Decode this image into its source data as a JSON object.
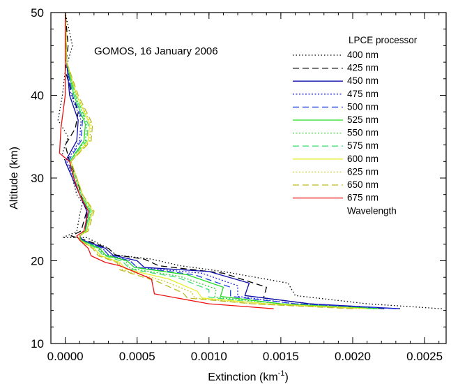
{
  "chart_data": {
    "type": "line",
    "annotation": "GOMOS, 16 January 2006",
    "xlabel": "Extinction (km",
    "xlabel_sup": "-1",
    "xlabel_close": ")",
    "ylabel": "Altitude (km)",
    "xlim": [
      -0.0001,
      0.00265
    ],
    "ylim": [
      10,
      50
    ],
    "xticks": [
      0.0,
      0.0005,
      0.001,
      0.0015,
      0.002,
      0.0025
    ],
    "xtick_labels": [
      "0.0000",
      "0.0005",
      "0.0010",
      "0.0015",
      "0.0020",
      "0.0025"
    ],
    "yticks": [
      10,
      20,
      30,
      40,
      50
    ],
    "ytick_labels": [
      "10",
      "20",
      "30",
      "40",
      "50"
    ],
    "legend": {
      "title": "LPCE processor",
      "footer": "Wavelength",
      "position": "top-right"
    },
    "series": [
      {
        "name": "400 nm",
        "color": "#000000",
        "dash": "1.5,3",
        "x": [
          0.00262,
          0.0021,
          0.0016,
          0.00155,
          0.0011,
          0.0008,
          0.0006,
          0.00035,
          0.0003,
          0.00015,
          -2e-05,
          8e-05,
          0.0001,
          0.00012,
          8e-05,
          5e-05,
          0.0,
          -2e-05,
          2e-05,
          -5e-05,
          -2e-05,
          0.0,
          5e-05,
          0.0
        ],
        "y": [
          14.2,
          14.8,
          15.8,
          17.3,
          18.7,
          19.4,
          20.2,
          20.7,
          21.5,
          22.8,
          22.8,
          23.5,
          25.5,
          27.0,
          28.0,
          30.0,
          32.0,
          33.0,
          35.0,
          37.0,
          40.0,
          43.0,
          46.0,
          50.0
        ]
      },
      {
        "name": "425 nm",
        "color": "#000000",
        "dash": "9,5",
        "x": [
          0.00222,
          0.0017,
          0.00138,
          0.0014,
          0.0011,
          0.00065,
          0.00055,
          0.00035,
          0.0003,
          0.00014,
          4e-05,
          0.00011,
          0.00015,
          0.00011,
          8e-05,
          3e-05,
          0.0,
          7e-05,
          9e-05,
          5e-05,
          0.0,
          2e-05,
          0.0
        ],
        "y": [
          14.2,
          14.8,
          15.5,
          16.8,
          18.5,
          19.4,
          20.2,
          20.7,
          21.5,
          22.5,
          23.0,
          23.6,
          26.0,
          28.0,
          30.0,
          32.0,
          34.0,
          36.0,
          38.0,
          40.0,
          43.0,
          46.0,
          50.0
        ]
      },
      {
        "name": "450 nm",
        "color": "#0a0aa8",
        "dash": "",
        "x": [
          0.00233,
          0.0017,
          0.00125,
          0.00128,
          0.001,
          0.00055,
          0.0005,
          0.00033,
          0.00028,
          0.00012,
          0.0001,
          0.00014,
          0.00015,
          0.0001,
          5e-05,
          0.0,
          8e-05,
          9e-05,
          3e-05,
          1e-05,
          0.0
        ],
        "y": [
          14.2,
          14.8,
          15.8,
          17.3,
          18.7,
          19.2,
          20.0,
          20.7,
          21.5,
          22.5,
          23.0,
          23.6,
          26.0,
          28.0,
          30.0,
          32.0,
          34.5,
          37.0,
          40.0,
          44.0,
          50.0
        ]
      },
      {
        "name": "475 nm",
        "color": "#2222dd",
        "dash": "2,2.5",
        "x": [
          0.0023,
          0.0016,
          0.0012,
          0.0012,
          0.00095,
          0.0005,
          0.00045,
          0.0003,
          0.00026,
          0.00012,
          0.0001,
          0.00014,
          0.00016,
          0.0001,
          6e-05,
          1e-05,
          0.0001,
          0.00011,
          4e-05,
          1e-05,
          0.0
        ],
        "y": [
          14.2,
          14.8,
          15.7,
          17.0,
          18.5,
          19.2,
          20.0,
          20.7,
          21.5,
          22.5,
          23.0,
          23.6,
          26.0,
          28.0,
          30.0,
          32.0,
          34.5,
          37.0,
          40.0,
          44.0,
          50.0
        ]
      },
      {
        "name": "500 nm",
        "color": "#1f3fe0",
        "dash": "9,5",
        "x": [
          0.0023,
          0.0016,
          0.00115,
          0.00115,
          0.0009,
          0.0005,
          0.00045,
          0.0003,
          0.00026,
          0.00012,
          0.0001,
          0.00014,
          0.00016,
          0.0001,
          6e-05,
          2e-05,
          0.00011,
          0.00012,
          5e-05,
          1e-05,
          0.0
        ],
        "y": [
          14.2,
          14.8,
          15.7,
          16.8,
          18.3,
          19.2,
          20.0,
          20.7,
          21.5,
          22.5,
          23.0,
          23.6,
          26.0,
          28.0,
          30.0,
          32.0,
          34.5,
          37.0,
          40.0,
          44.0,
          50.0
        ]
      },
      {
        "name": "525 nm",
        "color": "#22dd22",
        "dash": "",
        "x": [
          0.00218,
          0.0015,
          0.00108,
          0.0011,
          0.00085,
          0.00048,
          0.00043,
          0.00028,
          0.00024,
          0.00011,
          0.0001,
          0.00014,
          0.00017,
          0.0001,
          6e-05,
          3e-05,
          0.00013,
          0.00014,
          6e-05,
          1e-05,
          0.0
        ],
        "y": [
          14.2,
          14.8,
          15.7,
          16.8,
          18.3,
          19.2,
          20.0,
          20.7,
          21.5,
          22.5,
          23.0,
          23.6,
          26.0,
          28.0,
          30.0,
          32.0,
          34.5,
          36.5,
          40.0,
          44.0,
          50.0
        ]
      },
      {
        "name": "550 nm",
        "color": "#33cc33",
        "dash": "2,2.5",
        "x": [
          0.00215,
          0.0015,
          0.00104,
          0.00105,
          0.0008,
          0.00045,
          0.00042,
          0.00027,
          0.00023,
          0.00011,
          0.0001,
          0.00015,
          0.00018,
          0.00011,
          7e-05,
          3e-05,
          0.00014,
          0.00015,
          7e-05,
          1e-05,
          0.0
        ],
        "y": [
          14.2,
          14.8,
          15.6,
          16.6,
          18.1,
          19.1,
          20.0,
          20.7,
          21.5,
          22.5,
          23.0,
          23.6,
          26.0,
          28.0,
          30.0,
          32.0,
          34.5,
          36.5,
          40.0,
          44.0,
          50.0
        ]
      },
      {
        "name": "575 nm",
        "color": "#44dd77",
        "dash": "9,5",
        "x": [
          0.00212,
          0.0014,
          0.001,
          0.001,
          0.00078,
          0.00045,
          0.0004,
          0.00026,
          0.00022,
          0.0001,
          0.0001,
          0.00015,
          0.00018,
          0.00011,
          7e-05,
          3e-05,
          0.00015,
          0.00016,
          7e-05,
          1e-05,
          0.0
        ],
        "y": [
          14.2,
          14.8,
          15.6,
          16.5,
          18.0,
          19.0,
          19.9,
          20.7,
          21.5,
          22.5,
          23.0,
          23.6,
          26.0,
          28.0,
          30.0,
          32.0,
          34.5,
          36.5,
          40.0,
          44.0,
          50.0
        ]
      },
      {
        "name": "600 nm",
        "color": "#e6ee30",
        "dash": "",
        "x": [
          0.0021,
          0.0014,
          0.00095,
          0.00092,
          0.00072,
          0.00042,
          0.00038,
          0.00025,
          0.0002,
          0.0001,
          0.0001,
          0.00015,
          0.00019,
          0.00012,
          8e-05,
          4e-05,
          0.00016,
          0.00017,
          8e-05,
          1e-05,
          0.0
        ],
        "y": [
          14.2,
          14.8,
          15.5,
          16.3,
          17.8,
          19.0,
          19.8,
          20.6,
          21.5,
          22.5,
          23.0,
          23.6,
          26.0,
          28.0,
          30.0,
          32.0,
          34.5,
          36.5,
          40.0,
          44.0,
          50.0
        ]
      },
      {
        "name": "625 nm",
        "color": "#cccc22",
        "dash": "2,2.5",
        "x": [
          0.00205,
          0.0013,
          0.0009,
          0.00088,
          0.00068,
          0.0004,
          0.00037,
          0.00024,
          0.0002,
          0.0001,
          0.0001,
          0.00015,
          0.00019,
          0.00012,
          8e-05,
          4e-05,
          0.00017,
          0.00018,
          8e-05,
          1e-05,
          0.0
        ],
        "y": [
          14.2,
          14.8,
          15.5,
          16.2,
          17.6,
          18.9,
          19.8,
          20.6,
          21.5,
          22.5,
          23.0,
          23.6,
          26.0,
          28.0,
          30.0,
          32.0,
          34.5,
          36.5,
          40.0,
          44.0,
          50.0
        ]
      },
      {
        "name": "650 nm",
        "color": "#bbbb22",
        "dash": "9,5",
        "x": [
          0.002,
          0.0013,
          0.00085,
          0.00082,
          0.00064,
          0.00038,
          0.00036,
          0.00023,
          0.00019,
          0.0001,
          0.0001,
          0.00016,
          0.0002,
          0.00012,
          8e-05,
          4e-05,
          0.00018,
          0.00019,
          9e-05,
          1e-05,
          0.0
        ],
        "y": [
          14.2,
          14.8,
          15.5,
          16.1,
          17.5,
          18.9,
          19.8,
          20.6,
          21.5,
          22.5,
          23.0,
          23.6,
          26.0,
          28.0,
          30.0,
          32.0,
          34.5,
          36.5,
          40.0,
          44.0,
          50.0
        ]
      },
      {
        "name": "675 nm",
        "color": "#ee1111",
        "dash": "",
        "x": [
          0.00145,
          0.001,
          0.00062,
          0.0006,
          0.00045,
          0.00038,
          0.00028,
          0.00018,
          0.00016,
          0.0001,
          8e-05,
          0.00013,
          0.00016,
          0.0001,
          6e-05,
          3e-05,
          -4e-05,
          -3e-05,
          0.0,
          0.0,
          0.0
        ],
        "y": [
          14.2,
          14.8,
          16.0,
          17.8,
          18.9,
          19.4,
          19.8,
          20.6,
          21.5,
          22.5,
          23.0,
          23.6,
          26.0,
          28.0,
          30.0,
          32.0,
          33.0,
          36.0,
          40.0,
          45.0,
          50.0
        ]
      }
    ]
  }
}
